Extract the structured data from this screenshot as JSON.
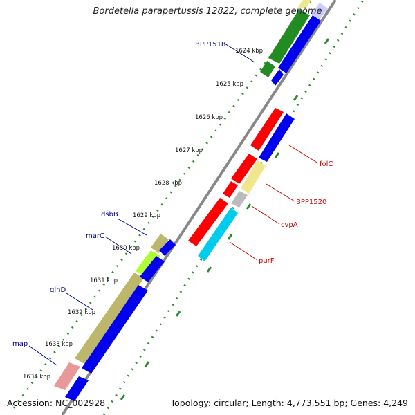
{
  "title": "Bordetella parapertussis 12822, complete genome",
  "accession": "Accession: NC_002928",
  "topology": "Topology: circular; Length: 4,773,551 bp; Genes: 4,249",
  "colors": {
    "backbone": "#888888",
    "tick_dots": "#2e8b2e",
    "label_left": "#00008b",
    "label_right": "#cc0000"
  },
  "kbp_labels": [
    {
      "text": "1624 kbp"
    },
    {
      "text": "1625 kbp"
    },
    {
      "text": "1626 kbp"
    },
    {
      "text": "1627 kbp"
    },
    {
      "text": "1628 kbp"
    },
    {
      "text": "1629 kbp"
    },
    {
      "text": "1630 kbp"
    },
    {
      "text": "1631 kbp"
    },
    {
      "text": "1632 kbp"
    },
    {
      "text": "1633 kbp"
    },
    {
      "text": "1634 kbp"
    }
  ],
  "gene_labels_left": [
    {
      "text": "BPP1518"
    },
    {
      "text": "dsbB"
    },
    {
      "text": "marC"
    },
    {
      "text": "glnD"
    },
    {
      "text": "map"
    }
  ],
  "gene_labels_right": [
    {
      "text": "folC"
    },
    {
      "text": "BPP1520"
    },
    {
      "text": "cvpA"
    },
    {
      "text": "purF"
    }
  ]
}
